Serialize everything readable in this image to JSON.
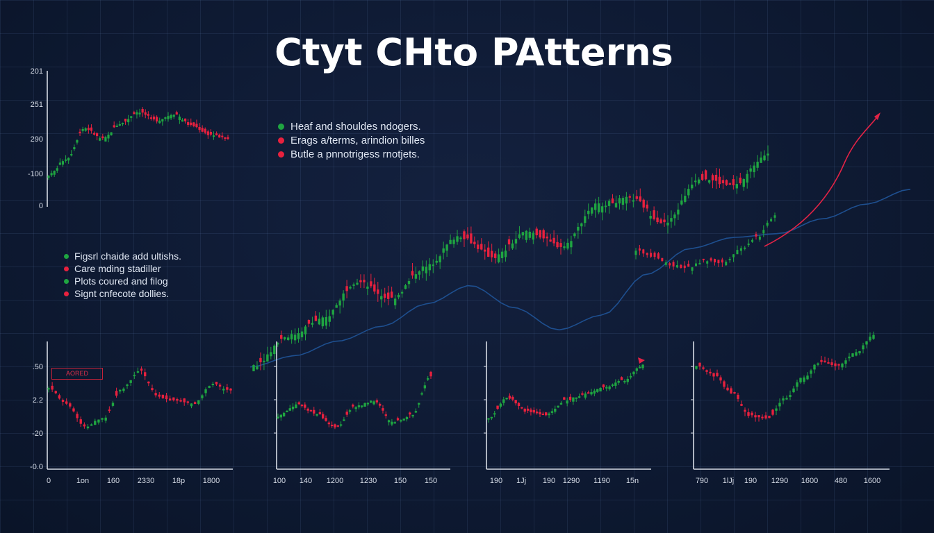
{
  "title": "Ctyt CHto PAtterns",
  "colors": {
    "bull": "#1fa541",
    "bear": "#e8213e",
    "axis": "#d6dbe4",
    "trend": "#1e4f8f",
    "arrow": "#e32346",
    "background": "#0e1a33"
  },
  "legend_top": [
    {
      "text": "Heaf and shouldes ndogers.",
      "color": "#1fa541"
    },
    {
      "text": "Erags a/terms, arindion billes",
      "color": "#e8213e"
    },
    {
      "text": "Butle a pnnotrigess rnotjets.",
      "color": "#e8213e"
    }
  ],
  "legend_left": [
    {
      "text": "Figsrl chaide add ultishs.",
      "color": "#1fa541"
    },
    {
      "text": "Care mding stadiller",
      "color": "#e8213e"
    },
    {
      "text": "Plots coured and filog",
      "color": "#1fa541"
    },
    {
      "text": "Signt cnfecote dollies.",
      "color": "#e8213e"
    }
  ],
  "annotation": "AORED",
  "chart_data": [
    {
      "id": "top-left",
      "type": "line",
      "yticks": [
        "201",
        "251",
        "290",
        "-100",
        "0"
      ],
      "xticks": [],
      "series": [
        {
          "values": [
            5,
            20,
            48,
            38,
            52,
            63,
            55,
            61,
            50,
            42,
            38
          ]
        }
      ]
    },
    {
      "id": "main",
      "type": "line",
      "yticks": [],
      "xticks": [],
      "series": [
        {
          "values": [
            8,
            22,
            30,
            48,
            40,
            55,
            70,
            60,
            72,
            65,
            85,
            88,
            76,
            98,
            94,
            110
          ]
        },
        {
          "values": [
            8,
            14,
            22,
            30,
            42,
            52,
            40,
            28,
            36,
            58,
            72,
            78,
            80,
            88,
            96,
            104
          ]
        },
        {
          "values": [
            74,
            70,
            62,
            60,
            66,
            64,
            76,
            86,
            104
          ]
        }
      ]
    },
    {
      "id": "bottom-1",
      "type": "line",
      "yticks": [
        ".50",
        "2.2",
        "-20",
        "-0.0"
      ],
      "xticks": [
        "0",
        "1on",
        "160",
        "2330",
        "18p",
        "1800"
      ],
      "series": [
        {
          "values": [
            62,
            45,
            22,
            30,
            60,
            80,
            52,
            48,
            45,
            66,
            58
          ]
        }
      ]
    },
    {
      "id": "bottom-2",
      "type": "line",
      "yticks": [],
      "xticks": [
        "100",
        "140",
        "1200",
        "1230",
        "150",
        "150"
      ],
      "series": [
        {
          "values": [
            35,
            48,
            38,
            22,
            45,
            52,
            28,
            36,
            80
          ]
        }
      ]
    },
    {
      "id": "bottom-3",
      "type": "line",
      "yticks": [],
      "xticks": [
        "190",
        "1Jj",
        "190",
        "1290",
        "1190",
        "15n"
      ],
      "series": [
        {
          "values": [
            25,
            48,
            32,
            28,
            45,
            52,
            60,
            68,
            85
          ]
        }
      ]
    },
    {
      "id": "bottom-4",
      "type": "line",
      "yticks": [],
      "xticks": [
        "790",
        "1lJj",
        "190",
        "1290",
        "1600",
        "480",
        "1600"
      ],
      "series": [
        {
          "values": [
            68,
            60,
            45,
            25,
            22,
            40,
            58,
            72,
            68,
            80,
            95
          ]
        }
      ]
    }
  ]
}
